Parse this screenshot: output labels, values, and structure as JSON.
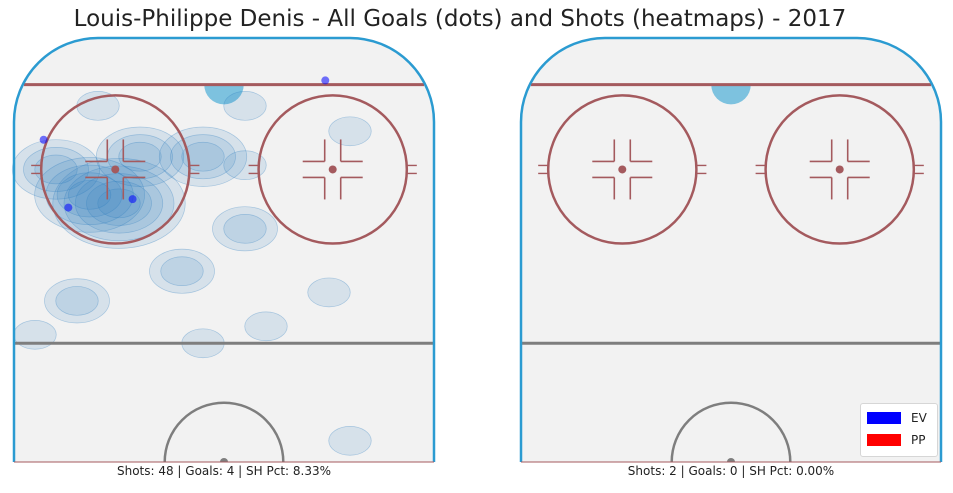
{
  "chart_data": [
    {
      "type": "heatmap",
      "title": "Louis-Philippe Denis - All Goals (dots) and Shots (heatmaps) - 2017",
      "subplot": "left",
      "caption": "Shots: 48 | Goals: 4 | SH Pct: 8.33%",
      "shots": 48,
      "goals_count": 4,
      "sh_pct": "8.33%",
      "goals": [
        {
          "x": 11,
          "y": 60,
          "strength": "EV"
        },
        {
          "x": 24,
          "y": 62,
          "strength": "EV"
        },
        {
          "x": 6,
          "y": 76,
          "strength": "EV"
        },
        {
          "x": 63,
          "y": 90,
          "strength": "EV"
        }
      ],
      "shot_density": [
        {
          "x": 25,
          "y": 61,
          "level": 5
        },
        {
          "x": 18,
          "y": 63,
          "level": 4
        },
        {
          "x": 10,
          "y": 69,
          "level": 3
        },
        {
          "x": 45,
          "y": 72,
          "level": 3
        },
        {
          "x": 30,
          "y": 72,
          "level": 3
        },
        {
          "x": 40,
          "y": 45,
          "level": 2
        },
        {
          "x": 55,
          "y": 55,
          "level": 2
        },
        {
          "x": 15,
          "y": 38,
          "level": 2
        },
        {
          "x": 55,
          "y": 70,
          "level": 1
        },
        {
          "x": 60,
          "y": 32,
          "level": 1
        },
        {
          "x": 5,
          "y": 30,
          "level": 1
        },
        {
          "x": 45,
          "y": 28,
          "level": 1
        },
        {
          "x": 20,
          "y": 84,
          "level": 1
        },
        {
          "x": 55,
          "y": 84,
          "level": 1
        },
        {
          "x": 75,
          "y": 40,
          "level": 1
        },
        {
          "x": 80,
          "y": 78,
          "level": 1
        },
        {
          "x": 80,
          "y": 5,
          "level": 1
        }
      ]
    },
    {
      "type": "heatmap",
      "subplot": "right",
      "caption": "Shots: 2 | Goals: 0 | SH Pct: 0.00%",
      "shots": 2,
      "goals_count": 0,
      "sh_pct": "0.00%",
      "goals": [],
      "shot_density": [],
      "legend": [
        {
          "label": "EV",
          "color": "#0000ff"
        },
        {
          "label": "PP",
          "color": "#ff0000"
        }
      ],
      "legend_position": "bottom-right"
    }
  ],
  "colors": {
    "ice": "#f2f2f2",
    "boards": "#2b9bd1",
    "red_line": "#a45a5e",
    "blue_line": "#7e7e7e",
    "crease": "#7dc2df",
    "goal_ev": "#0000ff",
    "goal_pp": "#ff0000",
    "heat": "#2f7fc0"
  }
}
